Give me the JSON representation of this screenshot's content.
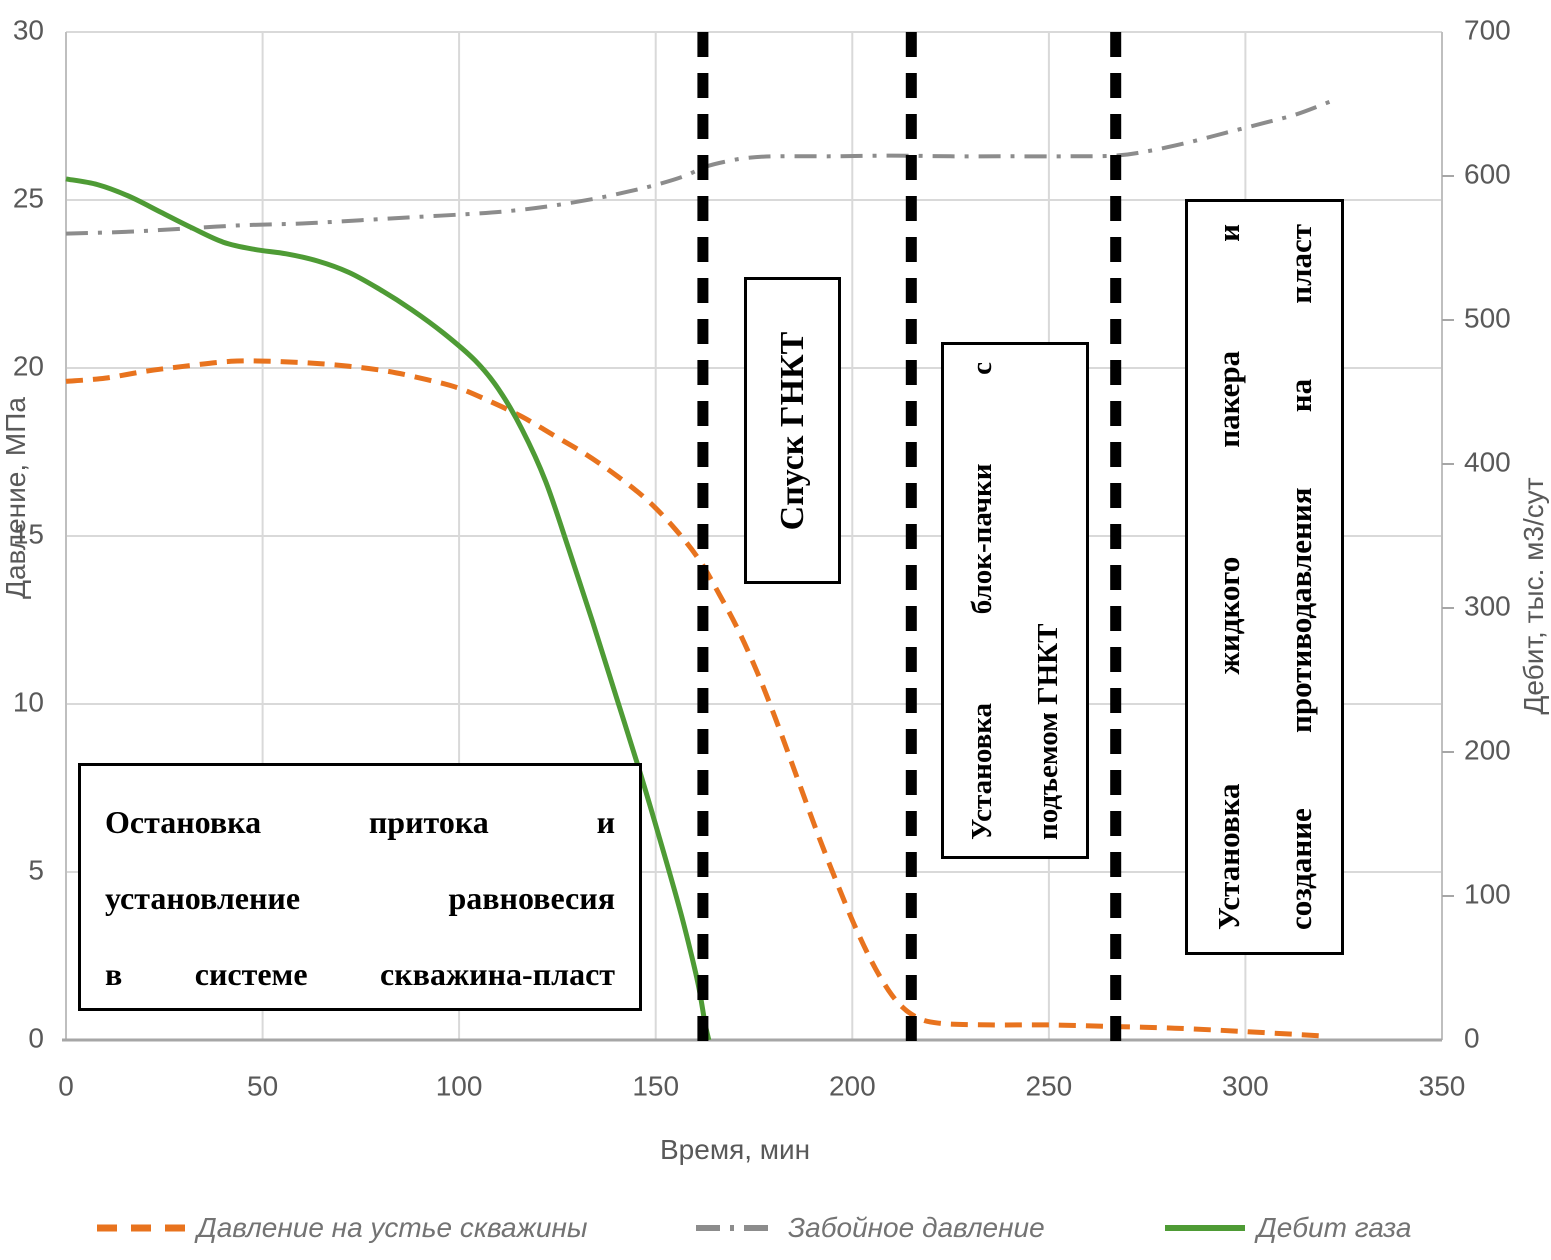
{
  "axes": {
    "x": {
      "title": "Время, мин",
      "min": 0,
      "max": 350,
      "ticks": [
        0,
        50,
        100,
        150,
        200,
        250,
        300,
        350
      ]
    },
    "y_left": {
      "title": "Давление, МПа",
      "min": 0,
      "max": 30,
      "ticks": [
        0,
        5,
        10,
        15,
        20,
        25,
        30
      ]
    },
    "y_right": {
      "title": "Дебит, тыс. м3/сут",
      "min": 0,
      "max": 700,
      "ticks": [
        0,
        100,
        200,
        300,
        400,
        500,
        600,
        700
      ]
    }
  },
  "chart_data": {
    "type": "line",
    "title": "",
    "xlabel": "Время, мин",
    "ylabel_left": "Давление, МПа",
    "ylabel_right": "Дебит, тыс. м3/сут",
    "x_range": [
      0,
      350
    ],
    "y_left_range": [
      0,
      30
    ],
    "y_right_range": [
      0,
      700
    ],
    "grid": true,
    "legend_position": "bottom",
    "colors": {
      "grid": "#d9d9d9",
      "axis": "#a6a6a6",
      "tick_text": "#595959",
      "event_line": "#000000"
    },
    "event_lines_x": [
      162,
      215,
      267
    ],
    "series": [
      {
        "name": "Давление на устье скважины",
        "axis": "left",
        "style": "dashed",
        "color": "#E8731E",
        "points": [
          [
            0,
            19.6
          ],
          [
            10,
            19.7
          ],
          [
            20,
            19.9
          ],
          [
            30,
            20.05
          ],
          [
            42,
            20.2
          ],
          [
            52,
            20.2
          ],
          [
            62,
            20.15
          ],
          [
            72,
            20.05
          ],
          [
            82,
            19.9
          ],
          [
            92,
            19.65
          ],
          [
            100,
            19.4
          ],
          [
            108,
            19.0
          ],
          [
            116,
            18.55
          ],
          [
            124,
            18.0
          ],
          [
            132,
            17.45
          ],
          [
            140,
            16.8
          ],
          [
            148,
            16.05
          ],
          [
            155,
            15.2
          ],
          [
            161,
            14.3
          ],
          [
            166,
            13.3
          ],
          [
            171,
            12.2
          ],
          [
            176,
            10.9
          ],
          [
            181,
            9.4
          ],
          [
            186,
            7.8
          ],
          [
            191,
            6.2
          ],
          [
            196,
            4.7
          ],
          [
            201,
            3.3
          ],
          [
            206,
            2.1
          ],
          [
            211,
            1.2
          ],
          [
            216,
            0.7
          ],
          [
            222,
            0.5
          ],
          [
            235,
            0.45
          ],
          [
            250,
            0.45
          ],
          [
            267,
            0.4
          ],
          [
            282,
            0.35
          ],
          [
            300,
            0.25
          ],
          [
            320,
            0.12
          ]
        ]
      },
      {
        "name": "Забойное давление",
        "axis": "left",
        "style": "dashdot",
        "color": "#8C8C8C",
        "points": [
          [
            0,
            24.0
          ],
          [
            15,
            24.05
          ],
          [
            30,
            24.15
          ],
          [
            45,
            24.25
          ],
          [
            60,
            24.3
          ],
          [
            75,
            24.4
          ],
          [
            90,
            24.5
          ],
          [
            105,
            24.6
          ],
          [
            115,
            24.7
          ],
          [
            125,
            24.85
          ],
          [
            135,
            25.05
          ],
          [
            143,
            25.25
          ],
          [
            150,
            25.45
          ],
          [
            157,
            25.7
          ],
          [
            163,
            26.0
          ],
          [
            168,
            26.15
          ],
          [
            173,
            26.25
          ],
          [
            180,
            26.3
          ],
          [
            195,
            26.3
          ],
          [
            210,
            26.32
          ],
          [
            225,
            26.3
          ],
          [
            240,
            26.3
          ],
          [
            255,
            26.3
          ],
          [
            267,
            26.32
          ],
          [
            275,
            26.45
          ],
          [
            285,
            26.7
          ],
          [
            295,
            27.0
          ],
          [
            305,
            27.3
          ],
          [
            313,
            27.55
          ],
          [
            322,
            27.95
          ]
        ]
      },
      {
        "name": "Дебит газа",
        "axis": "right",
        "style": "solid",
        "color": "#4E9B35",
        "points": [
          [
            0,
            598
          ],
          [
            8,
            594
          ],
          [
            16,
            586
          ],
          [
            24,
            575
          ],
          [
            32,
            564
          ],
          [
            40,
            554
          ],
          [
            48,
            549
          ],
          [
            56,
            546
          ],
          [
            64,
            541
          ],
          [
            72,
            533
          ],
          [
            80,
            521
          ],
          [
            88,
            507
          ],
          [
            96,
            491
          ],
          [
            104,
            472
          ],
          [
            110,
            452
          ],
          [
            116,
            424
          ],
          [
            122,
            388
          ],
          [
            128,
            340
          ],
          [
            134,
            290
          ],
          [
            140,
            238
          ],
          [
            146,
            186
          ],
          [
            151,
            140
          ],
          [
            156,
            92
          ],
          [
            159,
            60
          ],
          [
            161,
            36
          ],
          [
            162.5,
            12
          ],
          [
            163.5,
            0
          ]
        ]
      }
    ]
  },
  "annotations": {
    "box_shutin": {
      "lines": [
        "Остановка притока и",
        "установление равновесия",
        "в системе скважина-пласт"
      ]
    },
    "box_rih": {
      "lines": [
        "Спуск ГНКТ"
      ]
    },
    "box_block": {
      "lines": [
        "Установка блок-пачки с",
        "подъемом ГНКТ"
      ]
    },
    "box_packer": {
      "lines": [
        "Установка жидкого пакера и",
        "создание противодавления на пласт"
      ]
    }
  },
  "legend": {
    "items": [
      "Давление на устье скважины",
      "Забойное давление",
      "Дебит газа"
    ]
  }
}
